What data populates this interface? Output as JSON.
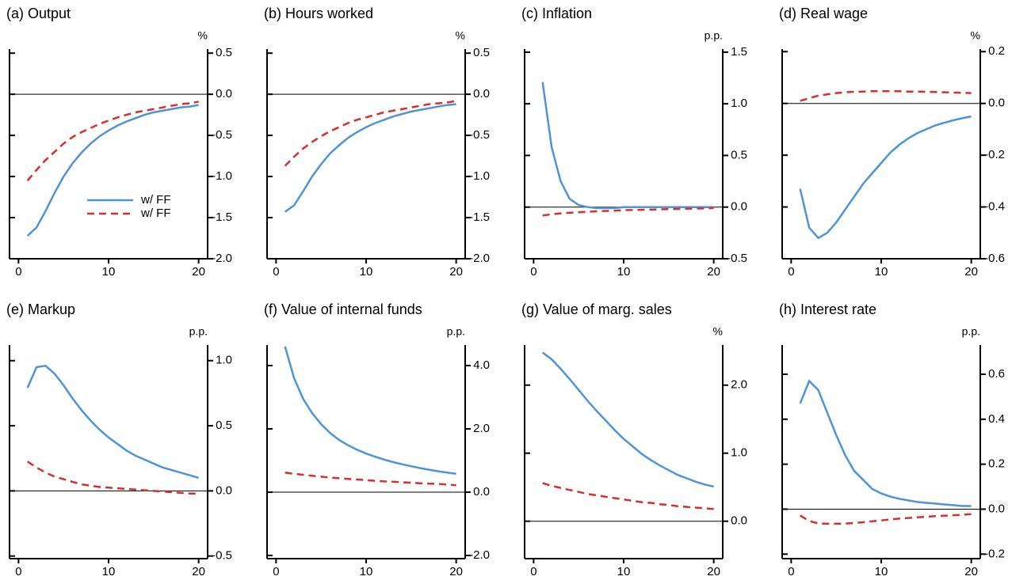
{
  "chart_data": [
    {
      "type": "line",
      "title": "(a) Output",
      "ylabel": "%",
      "legend": "lower right",
      "x": [
        1,
        2,
        3,
        4,
        5,
        6,
        7,
        8,
        9,
        10,
        11,
        12,
        13,
        14,
        15,
        16,
        17,
        18,
        19,
        20
      ],
      "xlim": [
        -1,
        21
      ],
      "xticks": [
        0,
        10,
        20
      ],
      "ylim": [
        -2.0,
        0.55
      ],
      "yticks": [
        0.5,
        {
          "value": 0,
          "label": "0.0"
        },
        -0.5,
        {
          "value": -1,
          "label": "-1.0"
        },
        -1.5,
        {
          "value": -2,
          "label": "-2.0"
        }
      ],
      "zero_line": true,
      "series": [
        {
          "name": "w/ FF",
          "color": "#4f94d4",
          "dash": "solid",
          "values": [
            -1.72,
            -1.62,
            -1.42,
            -1.2,
            -1.0,
            -0.84,
            -0.71,
            -0.6,
            -0.51,
            -0.44,
            -0.38,
            -0.33,
            -0.29,
            -0.25,
            -0.22,
            -0.2,
            -0.18,
            -0.16,
            -0.15,
            -0.13
          ]
        },
        {
          "name": "w/ FF",
          "color": "#d62f2f",
          "dash": "dashed",
          "values": [
            -1.05,
            -0.92,
            -0.8,
            -0.7,
            -0.6,
            -0.52,
            -0.46,
            -0.41,
            -0.36,
            -0.32,
            -0.28,
            -0.25,
            -0.22,
            -0.2,
            -0.18,
            -0.16,
            -0.14,
            -0.12,
            -0.11,
            -0.09
          ]
        }
      ]
    },
    {
      "type": "line",
      "title": "(b) Hours worked",
      "ylabel": "%",
      "x": [
        1,
        2,
        3,
        4,
        5,
        6,
        7,
        8,
        9,
        10,
        11,
        12,
        13,
        14,
        15,
        16,
        17,
        18,
        19,
        20
      ],
      "xlim": [
        -1,
        21
      ],
      "xticks": [
        0,
        10,
        20
      ],
      "ylim": [
        -2.0,
        0.55
      ],
      "yticks": [
        0.5,
        {
          "value": 0,
          "label": "0.0"
        },
        -0.5,
        {
          "value": -1,
          "label": "-1.0"
        },
        -1.5,
        {
          "value": -2,
          "label": "-2.0"
        }
      ],
      "zero_line": true,
      "series": [
        {
          "color": "#4f94d4",
          "dash": "solid",
          "values": [
            -1.43,
            -1.35,
            -1.18,
            -1.0,
            -0.85,
            -0.72,
            -0.62,
            -0.53,
            -0.46,
            -0.4,
            -0.35,
            -0.31,
            -0.27,
            -0.24,
            -0.21,
            -0.19,
            -0.17,
            -0.15,
            -0.13,
            -0.12
          ]
        },
        {
          "color": "#d62f2f",
          "dash": "dashed",
          "values": [
            -0.87,
            -0.76,
            -0.66,
            -0.58,
            -0.51,
            -0.45,
            -0.4,
            -0.35,
            -0.31,
            -0.28,
            -0.25,
            -0.22,
            -0.2,
            -0.18,
            -0.16,
            -0.14,
            -0.12,
            -0.11,
            -0.1,
            -0.08
          ]
        }
      ]
    },
    {
      "type": "line",
      "title": "(c) Inflation",
      "ylabel": "p.p.",
      "x": [
        1,
        2,
        3,
        4,
        5,
        6,
        7,
        8,
        9,
        10,
        11,
        12,
        13,
        14,
        15,
        16,
        17,
        18,
        19,
        20
      ],
      "xlim": [
        -1,
        21
      ],
      "xticks": [
        0,
        10,
        20
      ],
      "ylim": [
        -0.5,
        1.53
      ],
      "yticks": [
        1.5,
        {
          "value": 1,
          "label": "1.0"
        },
        0.5,
        {
          "value": 0,
          "label": "0.0"
        },
        -0.5
      ],
      "zero_line": true,
      "series": [
        {
          "color": "#4f94d4",
          "dash": "solid",
          "values": [
            1.21,
            0.58,
            0.25,
            0.08,
            0.02,
            0.0,
            -0.01,
            -0.01,
            -0.01,
            0,
            0,
            0,
            0,
            0,
            0,
            0,
            0,
            0,
            0,
            0
          ]
        },
        {
          "color": "#d62f2f",
          "dash": "dashed",
          "values": [
            -0.08,
            -0.07,
            -0.06,
            -0.055,
            -0.05,
            -0.045,
            -0.04,
            -0.037,
            -0.034,
            -0.03,
            -0.028,
            -0.026,
            -0.024,
            -0.022,
            -0.02,
            -0.018,
            -0.016,
            -0.014,
            -0.012,
            -0.01
          ]
        }
      ]
    },
    {
      "type": "line",
      "title": "(d) Real wage",
      "ylabel": "%",
      "x": [
        1,
        2,
        3,
        4,
        5,
        6,
        7,
        8,
        9,
        10,
        11,
        12,
        13,
        14,
        15,
        16,
        17,
        18,
        19,
        20
      ],
      "xlim": [
        -1,
        21
      ],
      "xticks": [
        0,
        10,
        20
      ],
      "ylim": [
        -0.6,
        0.21
      ],
      "yticks": [
        0.2,
        {
          "value": 0,
          "label": "0.0"
        },
        -0.2,
        -0.4,
        -0.6
      ],
      "zero_line": true,
      "series": [
        {
          "color": "#4f94d4",
          "dash": "solid",
          "values": [
            -0.33,
            -0.48,
            -0.52,
            -0.5,
            -0.46,
            -0.41,
            -0.36,
            -0.31,
            -0.27,
            -0.23,
            -0.19,
            -0.16,
            -0.135,
            -0.115,
            -0.1,
            -0.085,
            -0.075,
            -0.065,
            -0.057,
            -0.05
          ]
        },
        {
          "color": "#d62f2f",
          "dash": "dashed",
          "values": [
            0.01,
            0.02,
            0.03,
            0.035,
            0.04,
            0.043,
            0.045,
            0.046,
            0.047,
            0.047,
            0.047,
            0.047,
            0.046,
            0.046,
            0.045,
            0.044,
            0.043,
            0.042,
            0.041,
            0.04
          ]
        }
      ]
    },
    {
      "type": "line",
      "title": "(e) Markup",
      "ylabel": "p.p.",
      "x": [
        1,
        2,
        3,
        4,
        5,
        6,
        7,
        8,
        9,
        10,
        11,
        12,
        13,
        14,
        15,
        16,
        17,
        18,
        19,
        20
      ],
      "xlim": [
        -1,
        21
      ],
      "xticks": [
        0,
        10,
        20
      ],
      "ylim": [
        -0.52,
        1.12
      ],
      "yticks": [
        {
          "value": 1,
          "label": "1.0"
        },
        0.5,
        {
          "value": 0,
          "label": "0.0"
        },
        -0.5
      ],
      "zero_line": true,
      "series": [
        {
          "color": "#4f94d4",
          "dash": "solid",
          "values": [
            0.79,
            0.95,
            0.96,
            0.9,
            0.81,
            0.71,
            0.62,
            0.54,
            0.47,
            0.41,
            0.36,
            0.31,
            0.27,
            0.24,
            0.21,
            0.18,
            0.16,
            0.14,
            0.12,
            0.1
          ]
        },
        {
          "color": "#d62f2f",
          "dash": "dashed",
          "values": [
            0.225,
            0.18,
            0.14,
            0.11,
            0.09,
            0.07,
            0.05,
            0.04,
            0.03,
            0.025,
            0.02,
            0.015,
            0.01,
            0.005,
            0,
            -0.005,
            -0.01,
            -0.015,
            -0.02,
            -0.02
          ]
        }
      ]
    },
    {
      "type": "line",
      "title": "(f) Value of internal funds",
      "ylabel": "p.p.",
      "x": [
        1,
        2,
        3,
        4,
        5,
        6,
        7,
        8,
        9,
        10,
        11,
        12,
        13,
        14,
        15,
        16,
        17,
        18,
        19,
        20
      ],
      "xlim": [
        -1,
        21
      ],
      "xticks": [
        0,
        10,
        20
      ],
      "ylim": [
        -2.1,
        4.65
      ],
      "yticks": [
        {
          "value": 4,
          "label": "4.0"
        },
        {
          "value": 2,
          "label": "2.0"
        },
        {
          "value": 0,
          "label": "0.0"
        },
        {
          "value": -2,
          "label": "-2.0"
        }
      ],
      "zero_line": true,
      "series": [
        {
          "color": "#4f94d4",
          "dash": "solid",
          "values": [
            4.6,
            3.6,
            2.95,
            2.5,
            2.15,
            1.87,
            1.65,
            1.48,
            1.34,
            1.22,
            1.12,
            1.03,
            0.95,
            0.88,
            0.82,
            0.76,
            0.71,
            0.66,
            0.62,
            0.58
          ]
        },
        {
          "color": "#d62f2f",
          "dash": "dashed",
          "values": [
            0.62,
            0.58,
            0.55,
            0.52,
            0.49,
            0.46,
            0.44,
            0.42,
            0.4,
            0.38,
            0.36,
            0.34,
            0.33,
            0.31,
            0.3,
            0.28,
            0.27,
            0.26,
            0.24,
            0.22
          ]
        }
      ]
    },
    {
      "type": "line",
      "title": "(g) Value of marg. sales",
      "ylabel": "%",
      "x": [
        1,
        2,
        3,
        4,
        5,
        6,
        7,
        8,
        9,
        10,
        11,
        12,
        13,
        14,
        15,
        16,
        17,
        18,
        19,
        20
      ],
      "xlim": [
        -1,
        21
      ],
      "xticks": [
        0,
        10,
        20
      ],
      "ylim": [
        -0.55,
        2.59
      ],
      "yticks": [
        {
          "value": 2,
          "label": "2.0"
        },
        {
          "value": 1,
          "label": "1.0"
        },
        {
          "value": 0,
          "label": "0.0"
        }
      ],
      "zero_line": true,
      "series": [
        {
          "color": "#4f94d4",
          "dash": "solid",
          "values": [
            2.48,
            2.38,
            2.24,
            2.09,
            1.93,
            1.77,
            1.62,
            1.48,
            1.34,
            1.21,
            1.1,
            0.99,
            0.9,
            0.82,
            0.75,
            0.68,
            0.63,
            0.58,
            0.54,
            0.51
          ]
        },
        {
          "color": "#d62f2f",
          "dash": "dashed",
          "values": [
            0.56,
            0.52,
            0.49,
            0.46,
            0.43,
            0.4,
            0.38,
            0.36,
            0.34,
            0.32,
            0.3,
            0.28,
            0.27,
            0.25,
            0.24,
            0.22,
            0.21,
            0.2,
            0.19,
            0.18
          ]
        }
      ]
    },
    {
      "type": "line",
      "title": "(h) Interest rate",
      "ylabel": "p.p.",
      "x": [
        1,
        2,
        3,
        4,
        5,
        6,
        7,
        8,
        9,
        10,
        11,
        12,
        13,
        14,
        15,
        16,
        17,
        18,
        19,
        20
      ],
      "xlim": [
        -1,
        21
      ],
      "xticks": [
        0,
        10,
        20
      ],
      "ylim": [
        -0.22,
        0.73
      ],
      "yticks": [
        0.6,
        0.4,
        0.2,
        {
          "value": 0,
          "label": "0.0"
        },
        -0.2
      ],
      "zero_line": true,
      "series": [
        {
          "color": "#4f94d4",
          "dash": "solid",
          "values": [
            0.47,
            0.57,
            0.53,
            0.43,
            0.33,
            0.24,
            0.17,
            0.13,
            0.09,
            0.07,
            0.056,
            0.046,
            0.039,
            0.032,
            0.028,
            0.025,
            0.021,
            0.018,
            0.014,
            0.014
          ]
        },
        {
          "color": "#d62f2f",
          "dash": "dashed",
          "values": [
            -0.028,
            -0.053,
            -0.063,
            -0.065,
            -0.065,
            -0.064,
            -0.062,
            -0.058,
            -0.054,
            -0.05,
            -0.046,
            -0.042,
            -0.039,
            -0.036,
            -0.034,
            -0.031,
            -0.029,
            -0.027,
            -0.025,
            -0.022
          ]
        }
      ]
    }
  ]
}
